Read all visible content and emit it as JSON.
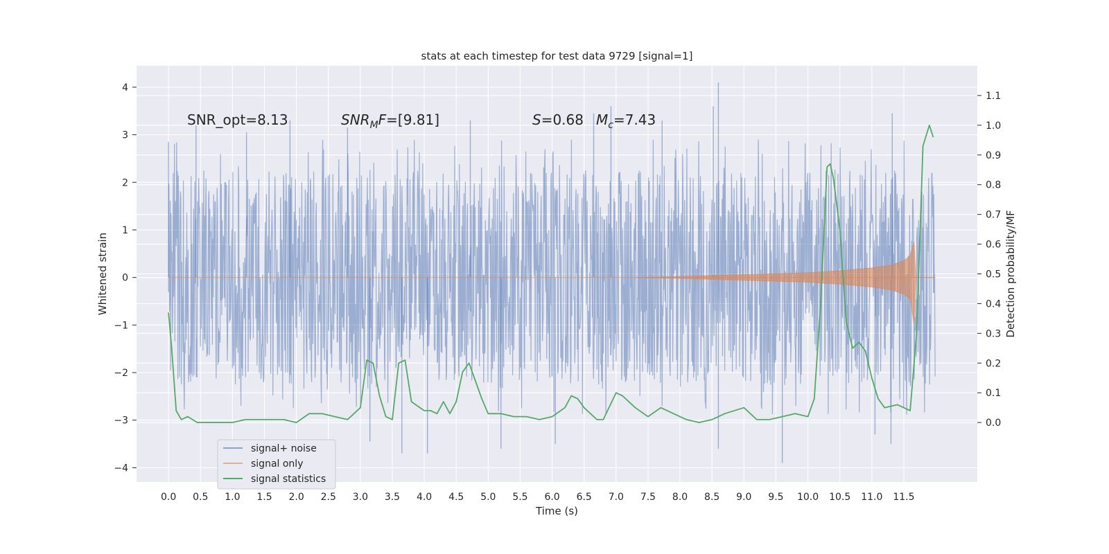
{
  "chart_data": {
    "type": "line",
    "title": "stats at each timestep for test data 9729 [signal=1]",
    "xlabel": "Time (s)",
    "ylabel": "Whitened strain",
    "y2label": "Detection probability/MF",
    "xlim": [
      -0.5,
      12.65
    ],
    "ylim": [
      -4.3,
      4.45
    ],
    "y2lim": [
      -0.2,
      1.2
    ],
    "xticks": [
      0.0,
      0.5,
      1.0,
      1.5,
      2.0,
      2.5,
      3.0,
      3.5,
      4.0,
      4.5,
      5.0,
      5.5,
      6.0,
      6.5,
      7.0,
      7.5,
      8.0,
      8.5,
      9.0,
      9.5,
      10.0,
      10.5,
      11.0,
      11.5
    ],
    "xtick_labels": [
      "0.0",
      "0.5",
      "1.0",
      "1.5",
      "2.0",
      "2.5",
      "3.0",
      "3.5",
      "4.0",
      "4.5",
      "5.0",
      "5.5",
      "6.0",
      "6.5",
      "7.0",
      "7.5",
      "8.0",
      "8.5",
      "9.0",
      "9.5",
      "10.0",
      "10.5",
      "11.0",
      "11.5"
    ],
    "yticks": [
      -4,
      -3,
      -2,
      -1,
      0,
      1,
      2,
      3,
      4
    ],
    "ytick_labels": [
      "−4",
      "−3",
      "−2",
      "−1",
      "0",
      "1",
      "2",
      "3",
      "4"
    ],
    "y2ticks": [
      0.0,
      0.1,
      0.2,
      0.3,
      0.4,
      0.5,
      0.6,
      0.7,
      0.8,
      0.9,
      1.0,
      1.1
    ],
    "y2tick_labels": [
      "0.0",
      "0.1",
      "0.2",
      "0.3",
      "0.4",
      "0.5",
      "0.6",
      "0.7",
      "0.8",
      "0.9",
      "1.0",
      "1.1"
    ],
    "grid": true,
    "legend_position": "lower-left",
    "series": [
      {
        "name": "signal+ noise",
        "color": "#4c72b0",
        "axis": "left",
        "x_start": 0.0,
        "x_end": 11.99,
        "typical_amplitude": 1.35,
        "peaks": [
          [
            0.0,
            2.85
          ],
          [
            0.43,
            3.2
          ],
          [
            1.22,
            3.05
          ],
          [
            1.9,
            3.3
          ],
          [
            2.8,
            3.15
          ],
          [
            3.15,
            -3.45
          ],
          [
            3.65,
            -3.7
          ],
          [
            4.05,
            -3.7
          ],
          [
            4.72,
            3.3
          ],
          [
            5.2,
            -3.6
          ],
          [
            6.05,
            -3.5
          ],
          [
            6.65,
            3.45
          ],
          [
            6.92,
            3.6
          ],
          [
            7.72,
            3.3
          ],
          [
            8.52,
            3.6
          ],
          [
            8.6,
            4.1
          ],
          [
            8.6,
            -3.6
          ],
          [
            9.6,
            -3.9
          ],
          [
            11.05,
            -3.3
          ],
          [
            11.3,
            -3.5
          ],
          [
            11.32,
            3.45
          ]
        ]
      },
      {
        "name": "signal only",
        "color": "#dd8452",
        "axis": "left",
        "envelope": [
          [
            7.3,
            0.0
          ],
          [
            8.0,
            0.02
          ],
          [
            8.5,
            0.04
          ],
          [
            9.0,
            0.06
          ],
          [
            9.5,
            0.08
          ],
          [
            10.0,
            0.1
          ],
          [
            10.5,
            0.14
          ],
          [
            11.0,
            0.2
          ],
          [
            11.3,
            0.26
          ],
          [
            11.5,
            0.35
          ],
          [
            11.6,
            0.45
          ],
          [
            11.66,
            0.75
          ],
          [
            11.69,
            0.0
          ],
          [
            11.99,
            0.0
          ]
        ]
      },
      {
        "name": "signal statistics",
        "color": "#55a868",
        "axis": "right",
        "x": [
          0.0,
          0.05,
          0.12,
          0.2,
          0.3,
          0.45,
          0.6,
          0.8,
          1.0,
          1.2,
          1.4,
          1.6,
          1.8,
          2.0,
          2.2,
          2.4,
          2.6,
          2.8,
          3.0,
          3.1,
          3.2,
          3.3,
          3.4,
          3.5,
          3.6,
          3.7,
          3.8,
          4.0,
          4.1,
          4.2,
          4.3,
          4.4,
          4.5,
          4.6,
          4.7,
          4.9,
          5.0,
          5.2,
          5.4,
          5.6,
          5.8,
          6.0,
          6.2,
          6.3,
          6.4,
          6.5,
          6.6,
          6.7,
          6.8,
          7.0,
          7.1,
          7.3,
          7.5,
          7.7,
          7.9,
          8.1,
          8.3,
          8.5,
          8.7,
          9.0,
          9.2,
          9.4,
          9.6,
          9.8,
          10.0,
          10.1,
          10.2,
          10.3,
          10.35,
          10.4,
          10.5,
          10.6,
          10.7,
          10.8,
          10.9,
          11.0,
          11.1,
          11.2,
          11.4,
          11.5,
          11.6,
          11.7,
          11.8,
          11.9,
          11.96
        ],
        "y": [
          0.37,
          0.25,
          0.04,
          0.01,
          0.02,
          0.0,
          0.0,
          0.0,
          0.0,
          0.01,
          0.01,
          0.01,
          0.01,
          0.0,
          0.03,
          0.03,
          0.02,
          0.01,
          0.05,
          0.21,
          0.2,
          0.09,
          0.02,
          0.01,
          0.2,
          0.21,
          0.07,
          0.04,
          0.04,
          0.03,
          0.07,
          0.03,
          0.07,
          0.17,
          0.2,
          0.08,
          0.03,
          0.03,
          0.02,
          0.02,
          0.01,
          0.02,
          0.05,
          0.09,
          0.08,
          0.05,
          0.03,
          0.01,
          0.01,
          0.1,
          0.09,
          0.05,
          0.02,
          0.05,
          0.03,
          0.01,
          0.0,
          0.01,
          0.03,
          0.05,
          0.01,
          0.01,
          0.02,
          0.03,
          0.02,
          0.08,
          0.4,
          0.86,
          0.87,
          0.82,
          0.65,
          0.34,
          0.25,
          0.27,
          0.24,
          0.15,
          0.08,
          0.05,
          0.06,
          0.05,
          0.04,
          0.3,
          0.93,
          1.0,
          0.96
        ]
      }
    ],
    "annotations": [
      {
        "text": "SNR_opt=8.13"
      },
      {
        "italic": "SNR",
        "sub": "M",
        "italic2": "F",
        "rest": "=[9.81]"
      },
      {
        "italic": "S",
        "rest": "=0.68"
      },
      {
        "italic": "M",
        "sub": "c",
        "rest": "=7.43"
      }
    ]
  }
}
